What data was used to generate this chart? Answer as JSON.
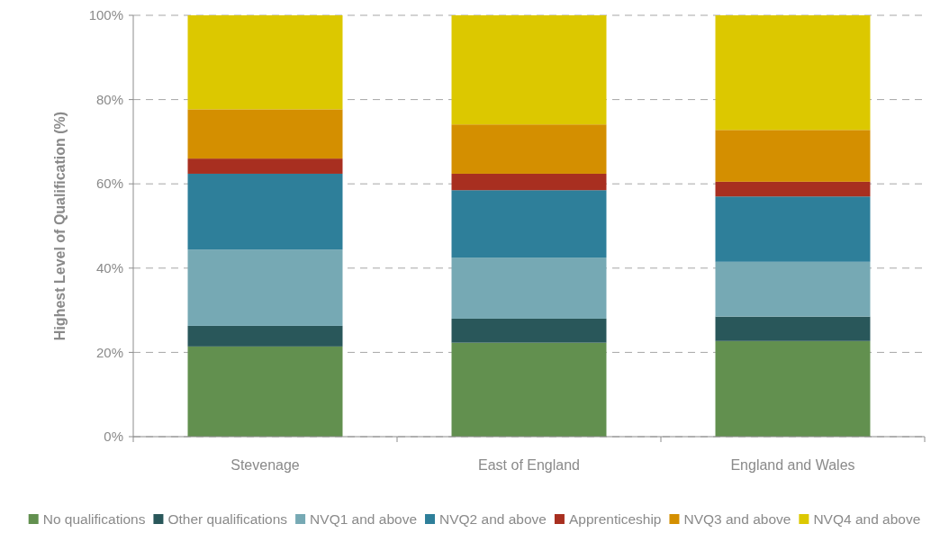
{
  "chart_data": {
    "type": "bar",
    "stacked": true,
    "ylabel": "Highest Level of Qualification (%)",
    "categories": [
      "Stevenage",
      "East of England",
      "England and Wales"
    ],
    "series": [
      {
        "name": "No qualifications",
        "color": "#62904f",
        "values": [
          21.4,
          22.3,
          22.7
        ]
      },
      {
        "name": "Other qualifications",
        "color": "#29575a",
        "values": [
          4.9,
          5.7,
          5.8
        ]
      },
      {
        "name": "NVQ1 and above",
        "color": "#76a9b4",
        "values": [
          18.1,
          14.5,
          13.0
        ]
      },
      {
        "name": "NVQ2 and above",
        "color": "#2e7f9a",
        "values": [
          18.0,
          16.0,
          15.5
        ]
      },
      {
        "name": "Apprenticeship",
        "color": "#a82f20",
        "values": [
          3.6,
          3.9,
          3.5
        ]
      },
      {
        "name": "NVQ3 and above",
        "color": "#d48f00",
        "values": [
          11.7,
          11.7,
          12.3
        ]
      },
      {
        "name": "NVQ4 and above",
        "color": "#dcc800",
        "values": [
          22.3,
          25.9,
          27.2
        ]
      }
    ],
    "ylim": [
      0,
      100
    ],
    "yticks": [
      {
        "value": 0,
        "label": "0%"
      },
      {
        "value": 20,
        "label": "20%"
      },
      {
        "value": 40,
        "label": "40%"
      },
      {
        "value": 60,
        "label": "60%"
      },
      {
        "value": 80,
        "label": "80%"
      },
      {
        "value": 100,
        "label": "100%"
      }
    ],
    "grid": "y",
    "legend": "bottom"
  }
}
